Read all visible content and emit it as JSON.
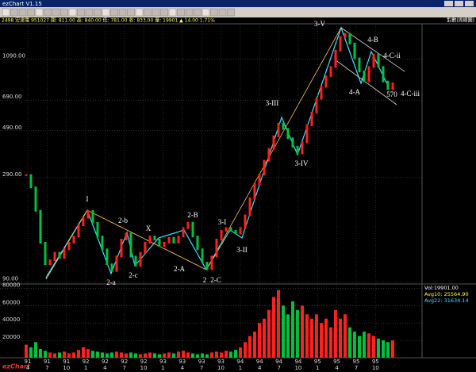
{
  "window": {
    "title": "ezChart V1.15"
  },
  "info_bar": {
    "left": "2498 宏達電 951027 開: 811.00 高: 840.00 低: 781.00 收: 833.00 量: 19901 ▲ 14.00 1.71%",
    "right": "對數(周線圖)"
  },
  "logo": "ezChart",
  "chart_data": [
    {
      "type": "candlestick",
      "log_scale": true,
      "grid": true,
      "ylim": [
        89,
        1620
      ],
      "yticks": [
        {
          "value": 90,
          "label": "90.00"
        },
        {
          "value": 290,
          "label": "290.00"
        },
        {
          "value": 490,
          "label": "490.00"
        },
        {
          "value": 690,
          "label": "690.00"
        },
        {
          "value": 1090,
          "label": "1090.00"
        }
      ],
      "up_color": "#ff2020",
      "down_color": "#00c040",
      "values": [
        298,
        260,
        200,
        140,
        110,
        115,
        125,
        118,
        130,
        140,
        150,
        170,
        185,
        200,
        175,
        150,
        130,
        110,
        102,
        120,
        145,
        155,
        120,
        108,
        125,
        140,
        150,
        145,
        135,
        140,
        148,
        140,
        150,
        165,
        175,
        150,
        130,
        112,
        104,
        120,
        145,
        160,
        165,
        160,
        155,
        165,
        190,
        230,
        270,
        300,
        350,
        400,
        460,
        530,
        500,
        450,
        410,
        380,
        430,
        520,
        600,
        700,
        800,
        900,
        1000,
        1200,
        1400,
        1450,
        1300,
        1100,
        950,
        850,
        1000,
        1150,
        1000,
        850,
        780,
        833
      ],
      "annotations": [
        "I",
        "2-b",
        "X",
        "2-B",
        "3-I",
        "2-a",
        "2-c",
        "2-A",
        "2",
        "2-C",
        "3-II",
        "3-III",
        "3-IV",
        "3-V",
        "4-B",
        "4-C-ii",
        "4-A",
        "570",
        "4-C-iii"
      ]
    },
    {
      "type": "bar",
      "grid": true,
      "ylim": [
        0,
        85000
      ],
      "yticks": [
        20000,
        40000,
        60000,
        80000
      ],
      "values": [
        15000,
        12000,
        18000,
        10000,
        8000,
        6000,
        5000,
        6000,
        7000,
        5000,
        6000,
        9000,
        12000,
        10000,
        8000,
        7000,
        6000,
        5000,
        6000,
        7000,
        6000,
        5000,
        6000,
        5000,
        4000,
        5000,
        6000,
        5000,
        4000,
        5000,
        6000,
        5000,
        7000,
        8000,
        6000,
        5000,
        4000,
        5000,
        4000,
        6000,
        7000,
        6000,
        8000,
        7000,
        9000,
        12000,
        18000,
        25000,
        30000,
        40000,
        45000,
        55000,
        70000,
        78000,
        60000,
        50000,
        65000,
        55000,
        60000,
        50000,
        45000,
        50000,
        40000,
        45000,
        35000,
        55000,
        45000,
        50000,
        35000,
        30000,
        25000,
        30000,
        28000,
        25000,
        22000,
        20000,
        18000,
        19901
      ],
      "legend": [
        "Vol:19901.00",
        "Avg10: 25564.90",
        "Avg22: 31634.14"
      ],
      "xtick_years": [
        "91",
        "91",
        "91",
        "92",
        "92",
        "92",
        "92",
        "93",
        "93",
        "93",
        "93",
        "94",
        "94",
        "94",
        "94",
        "95",
        "95",
        "95",
        "95"
      ],
      "xtick_months": [
        "4",
        "7",
        "10",
        "1",
        "4",
        "7",
        "10",
        "1",
        "4",
        "7",
        "10",
        "1",
        "4",
        "7",
        "10",
        "1",
        "4",
        "7",
        "10"
      ]
    }
  ]
}
